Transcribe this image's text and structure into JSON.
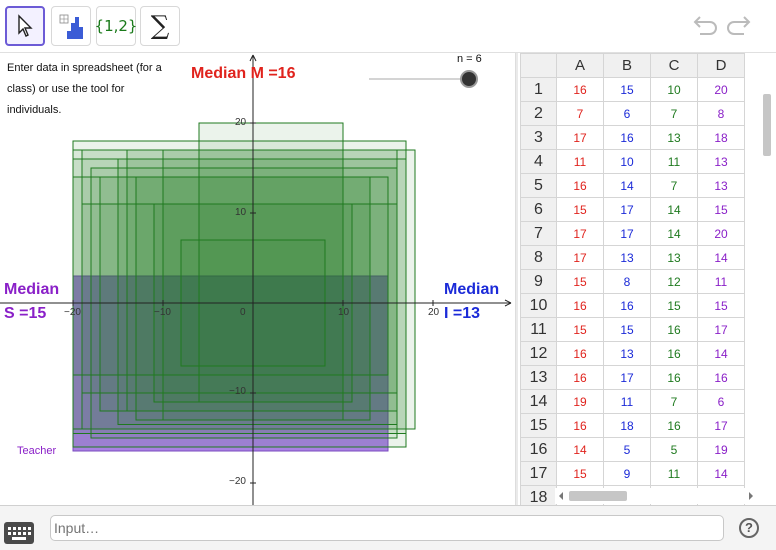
{
  "toolbar": {
    "tools": [
      {
        "name": "move-tool",
        "icon": "arrow-pointer-icon"
      },
      {
        "name": "statistics-tool",
        "icon": "bar-chart-icon"
      },
      {
        "name": "list-tool",
        "label": "{1,2}"
      },
      {
        "name": "sum-tool",
        "label": "∑"
      }
    ],
    "undo_icon": "undo-icon",
    "redo_icon": "redo-icon"
  },
  "graphics": {
    "instructions": "Enter data in spreadsheet (for a class) or use the tool for individuals.",
    "median_m": "Median M =16",
    "median_s_line1": "Median",
    "median_s_line2": "S =15",
    "median_i_line1": "Median",
    "median_i_line2": "I =13",
    "teacher": "Teacher",
    "slider_label": "n = 6",
    "slider_value": 6,
    "x_ticks": [
      "−20",
      "−10",
      "0",
      "10",
      "20"
    ],
    "y_ticks": [
      "20",
      "10",
      "−10",
      "−20"
    ],
    "colors": {
      "median_m": "#e0231d",
      "median_s": "#8a20c8",
      "median_i": "#1b2ad8",
      "green_rect": "#1f7a1f",
      "purple_rect": "#9a6bde"
    }
  },
  "spreadsheet": {
    "columns": [
      "A",
      "B",
      "C",
      "D"
    ],
    "rows": [
      {
        "n": "1",
        "cells": [
          "16",
          "15",
          "10",
          "20"
        ]
      },
      {
        "n": "2",
        "cells": [
          "7",
          "6",
          "7",
          "8"
        ]
      },
      {
        "n": "3",
        "cells": [
          "17",
          "16",
          "13",
          "18"
        ]
      },
      {
        "n": "4",
        "cells": [
          "11",
          "10",
          "11",
          "13"
        ]
      },
      {
        "n": "5",
        "cells": [
          "16",
          "14",
          "7",
          "13"
        ]
      },
      {
        "n": "6",
        "cells": [
          "15",
          "17",
          "14",
          "15"
        ]
      },
      {
        "n": "7",
        "cells": [
          "17",
          "17",
          "14",
          "20"
        ]
      },
      {
        "n": "8",
        "cells": [
          "17",
          "13",
          "13",
          "14"
        ]
      },
      {
        "n": "9",
        "cells": [
          "15",
          "8",
          "12",
          "11"
        ]
      },
      {
        "n": "10",
        "cells": [
          "16",
          "16",
          "15",
          "15"
        ]
      },
      {
        "n": "11",
        "cells": [
          "15",
          "15",
          "16",
          "17"
        ]
      },
      {
        "n": "12",
        "cells": [
          "16",
          "13",
          "16",
          "14"
        ]
      },
      {
        "n": "13",
        "cells": [
          "16",
          "17",
          "16",
          "16"
        ]
      },
      {
        "n": "14",
        "cells": [
          "19",
          "11",
          "7",
          "6"
        ]
      },
      {
        "n": "15",
        "cells": [
          "16",
          "18",
          "16",
          "17"
        ]
      },
      {
        "n": "16",
        "cells": [
          "14",
          "5",
          "5",
          "19"
        ]
      },
      {
        "n": "17",
        "cells": [
          "15",
          "9",
          "11",
          "14"
        ]
      },
      {
        "n": "18",
        "cells": [
          "",
          "",
          "",
          ""
        ]
      }
    ],
    "column_colors": [
      "#e0231d",
      "#1b2ad8",
      "#1f7a1f",
      "#8a20c8"
    ]
  },
  "input_bar": {
    "placeholder": "Input…",
    "help_label": "?",
    "keyboard_icon": "keyboard-icon"
  }
}
